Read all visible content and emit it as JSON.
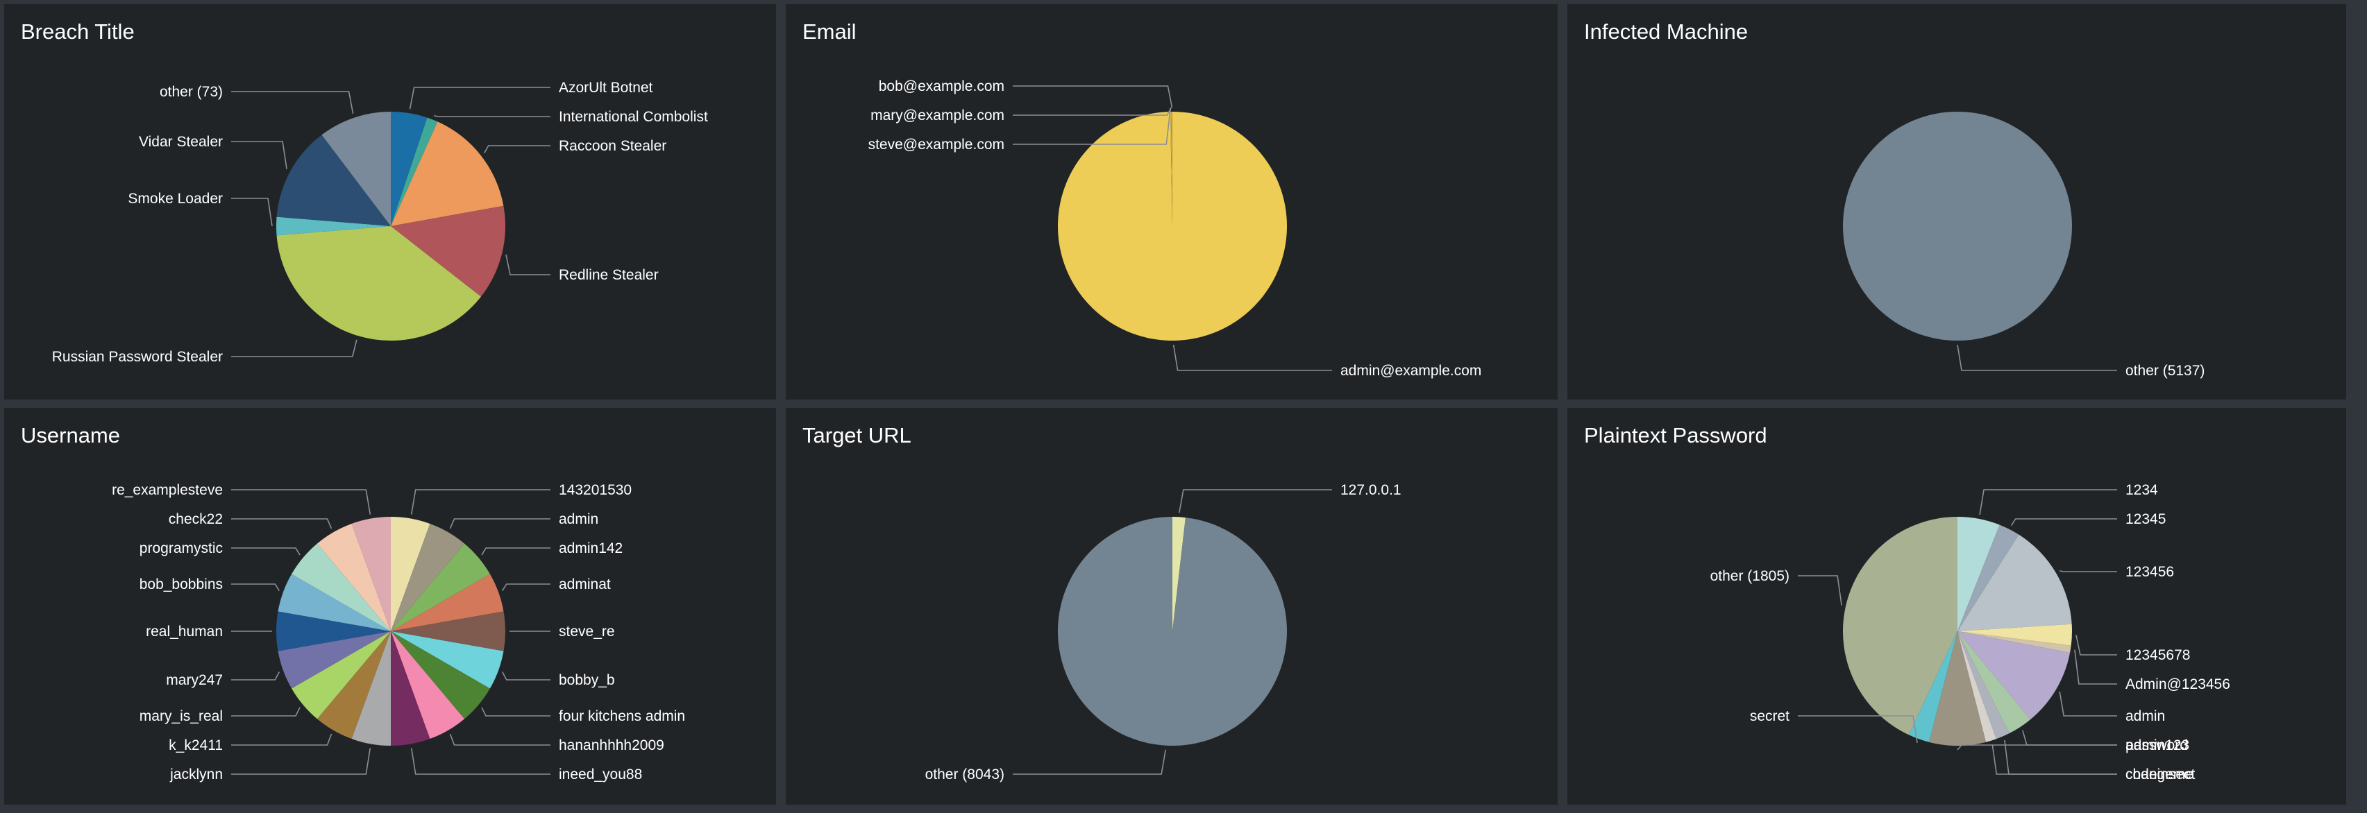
{
  "panels": [
    {
      "title": "Breach Title",
      "chart_data": {
        "type": "pie",
        "slices": [
          {
            "label": "AzorUlt Botnet",
            "value": 5,
            "color": "#1a6fa6"
          },
          {
            "label": "International Combolist",
            "value": 1.5,
            "color": "#3fa896"
          },
          {
            "label": "Raccoon Stealer",
            "value": 15,
            "color": "#ee9a5c"
          },
          {
            "label": "Redline Stealer",
            "value": 13,
            "color": "#b0555a"
          },
          {
            "label": "Russian Password Stealer",
            "value": 37,
            "color": "#b5c95a"
          },
          {
            "label": "Smoke Loader",
            "value": 2.5,
            "color": "#5dbcc2"
          },
          {
            "label": "Vidar Stealer",
            "value": 13,
            "color": "#2b4e72"
          },
          {
            "label": "other (73)",
            "value": 10,
            "color": "#7a8a9a"
          }
        ]
      }
    },
    {
      "title": "Email",
      "chart_data": {
        "type": "pie",
        "slices": [
          {
            "label": "admin@example.com",
            "value": 99.7,
            "color": "#edcd55"
          },
          {
            "label": "steve@example.com",
            "value": 0.1,
            "color": "#d9b94a"
          },
          {
            "label": "mary@example.com",
            "value": 0.1,
            "color": "#c9a942"
          },
          {
            "label": "bob@example.com",
            "value": 0.1,
            "color": "#b89a3a"
          }
        ]
      }
    },
    {
      "title": "Infected Machine",
      "chart_data": {
        "type": "pie",
        "slices": [
          {
            "label": "other (5137)",
            "value": 5137,
            "color": "#738593"
          }
        ]
      }
    },
    {
      "title": "Username",
      "chart_data": {
        "type": "pie",
        "slices": [
          {
            "label": "143201530",
            "value": 1,
            "color": "#ebe0a8"
          },
          {
            "label": "admin",
            "value": 1,
            "color": "#9b9582"
          },
          {
            "label": "admin142",
            "value": 1,
            "color": "#7fb55e"
          },
          {
            "label": "adminat",
            "value": 1,
            "color": "#d3785a"
          },
          {
            "label": "steve_re",
            "value": 1,
            "color": "#7f5a4e"
          },
          {
            "label": "bobby_b",
            "value": 1,
            "color": "#6fd3dc"
          },
          {
            "label": "four kitchens admin",
            "value": 1,
            "color": "#4d8433"
          },
          {
            "label": "hananhhhh2009",
            "value": 1,
            "color": "#f58ab0"
          },
          {
            "label": "ineed_you88",
            "value": 1,
            "color": "#742c61"
          },
          {
            "label": "jacklynn",
            "value": 1,
            "color": "#a9aaac"
          },
          {
            "label": "k_k2411",
            "value": 1,
            "color": "#a27a3c"
          },
          {
            "label": "mary_is_real",
            "value": 1,
            "color": "#a8d565"
          },
          {
            "label": "mary247",
            "value": 1,
            "color": "#7272a8"
          },
          {
            "label": "real_human",
            "value": 1,
            "color": "#205791"
          },
          {
            "label": "bob_bobbins",
            "value": 1,
            "color": "#76b3cf"
          },
          {
            "label": "programystic",
            "value": 1,
            "color": "#a8d8c6"
          },
          {
            "label": "check22",
            "value": 1,
            "color": "#f2c8ae"
          },
          {
            "label": "re_examplesteve",
            "value": 1,
            "color": "#ddaab2"
          }
        ]
      }
    },
    {
      "title": "Target URL",
      "chart_data": {
        "type": "pie",
        "slices": [
          {
            "label": "127.0.0.1",
            "value": 150,
            "color": "#e2e6a9"
          },
          {
            "label": "other (8043)",
            "value": 8043,
            "color": "#738593"
          }
        ]
      }
    },
    {
      "title": "Plaintext Password",
      "chart_data": {
        "type": "pie",
        "slices": [
          {
            "label": "1234",
            "value": 6,
            "color": "#b2dcd9"
          },
          {
            "label": "12345",
            "value": 3,
            "color": "#9aa7b6"
          },
          {
            "label": "123456",
            "value": 15,
            "color": "#b9c2c8"
          },
          {
            "label": "12345678",
            "value": 3,
            "color": "#f0e4a2"
          },
          {
            "label": "Admin@123456",
            "value": 1,
            "color": "#d2c4a8"
          },
          {
            "label": "admin",
            "value": 11,
            "color": "#b6abcf"
          },
          {
            "label": "admin123",
            "value": 3.5,
            "color": "#a9c9a6"
          },
          {
            "label": "changeme",
            "value": 2,
            "color": "#aeb2bd"
          },
          {
            "label": "codeinsect",
            "value": 1.5,
            "color": "#d8d2cc"
          },
          {
            "label": "password",
            "value": 8,
            "color": "#9c9483"
          },
          {
            "label": "secret",
            "value": 3,
            "color": "#5fc2cc"
          },
          {
            "label": "other (1805)",
            "value": 43,
            "color": "#a8b292"
          }
        ]
      }
    }
  ]
}
